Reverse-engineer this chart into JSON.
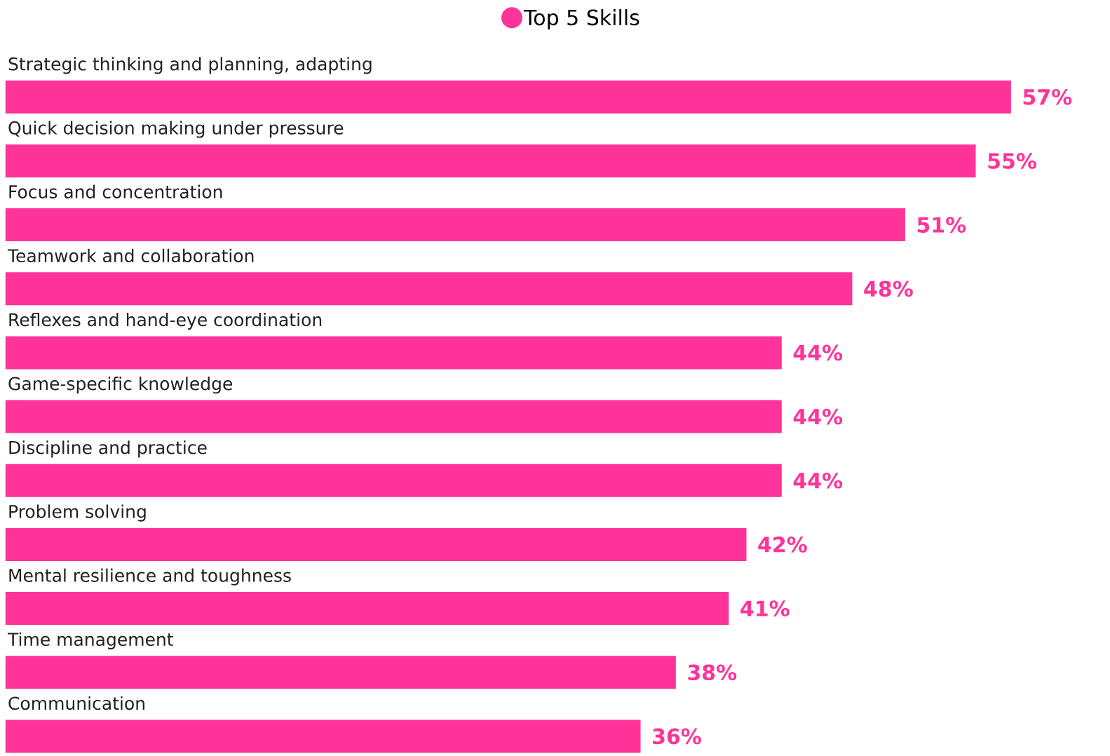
{
  "chart_data": {
    "type": "bar",
    "orientation": "horizontal",
    "categories": [
      "Strategic thinking and planning, adapting",
      "Quick decision making under pressure",
      "Focus and concentration",
      "Teamwork and collaboration",
      "Reflexes and hand-eye coordination",
      "Game-specific knowledge",
      "Discipline and practice",
      "Problem solving",
      "Mental resilience and toughness",
      "Time management",
      "Communication"
    ],
    "series": [
      {
        "name": "Top 5 Skills",
        "color": "#ff3399",
        "values": [
          57,
          55,
          51,
          48,
          44,
          44,
          44,
          42,
          41,
          38,
          36
        ],
        "value_labels": [
          "57%",
          "55%",
          "51%",
          "48%",
          "44%",
          "44%",
          "44%",
          "42%",
          "41%",
          "38%",
          "36%"
        ]
      }
    ],
    "legend": "top"
  }
}
